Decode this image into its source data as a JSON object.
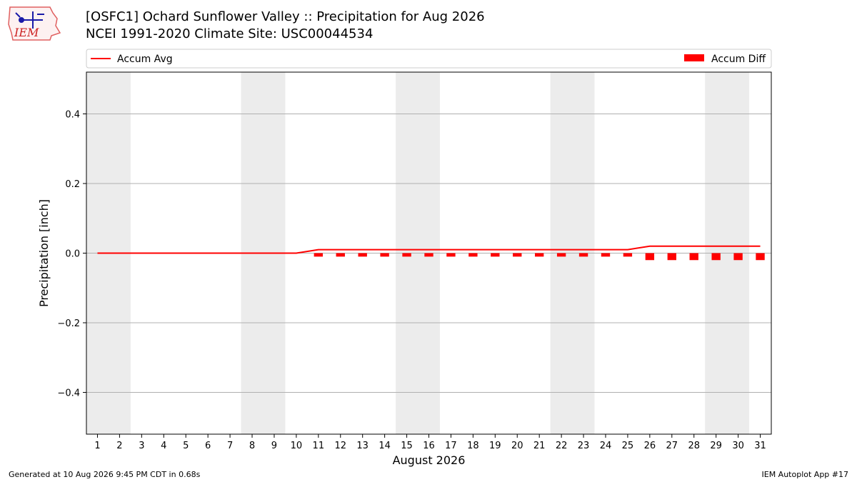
{
  "header": {
    "title_line1": "[OSFC1] Ochard Sunflower Valley :: Precipitation for Aug 2026",
    "title_line2": "NCEI 1991-2020 Climate Site: USC00044534",
    "logo_text": "IEM"
  },
  "footer": {
    "generated": "Generated at 10 Aug 2026 9:45 PM CDT in 0.68s",
    "app": "IEM Autoplot App #17"
  },
  "colors": {
    "accum_avg": "#ff0000",
    "accum_diff": "#ff0000",
    "weekend_band": "#ececec",
    "grid": "#b0b0b0"
  },
  "chart_data": {
    "type": "bar",
    "xlabel": "August 2026",
    "ylabel": "Precipitation [inch]",
    "ylim": [
      -0.52,
      0.52
    ],
    "yticks": [
      -0.4,
      -0.2,
      0.0,
      0.2,
      0.4
    ],
    "ytick_labels": [
      "−0.4",
      "−0.2",
      "0.0",
      "0.2",
      "0.4"
    ],
    "xlim": [
      0.5,
      31.5
    ],
    "days": [
      1,
      2,
      3,
      4,
      5,
      6,
      7,
      8,
      9,
      10,
      11,
      12,
      13,
      14,
      15,
      16,
      17,
      18,
      19,
      20,
      21,
      22,
      23,
      24,
      25,
      26,
      27,
      28,
      29,
      30,
      31
    ],
    "grid": "horizontal",
    "legend_placement": "top (above plot)",
    "weekend_bands": [
      [
        0.5,
        2.5
      ],
      [
        7.5,
        9.5
      ],
      [
        14.5,
        16.5
      ],
      [
        21.5,
        23.5
      ],
      [
        28.5,
        30.5
      ]
    ],
    "series": [
      {
        "name": "Accum Avg",
        "kind": "line",
        "values": [
          0,
          0,
          0,
          0,
          0,
          0,
          0,
          0,
          0,
          0,
          0.01,
          0.01,
          0.01,
          0.01,
          0.01,
          0.01,
          0.01,
          0.01,
          0.01,
          0.01,
          0.01,
          0.01,
          0.01,
          0.01,
          0.01,
          0.02,
          0.02,
          0.02,
          0.02,
          0.02,
          0.02
        ]
      },
      {
        "name": "Accum Diff",
        "kind": "bar",
        "values": [
          null,
          null,
          null,
          null,
          null,
          null,
          null,
          null,
          null,
          null,
          -0.01,
          -0.01,
          -0.01,
          -0.01,
          -0.01,
          -0.01,
          -0.01,
          -0.01,
          -0.01,
          -0.01,
          -0.01,
          -0.01,
          -0.01,
          -0.01,
          -0.01,
          -0.02,
          -0.02,
          -0.02,
          -0.02,
          -0.02,
          -0.02
        ]
      }
    ]
  }
}
